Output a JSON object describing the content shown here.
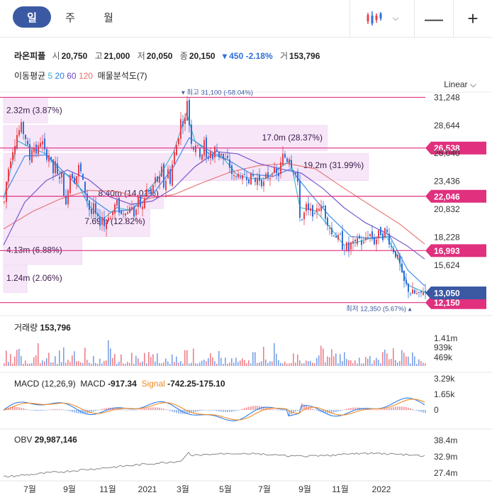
{
  "toolbar": {
    "periods": [
      {
        "label": "일",
        "active": true
      },
      {
        "label": "주",
        "active": false
      },
      {
        "label": "월",
        "active": false
      }
    ],
    "zoom_out": "—",
    "zoom_in": "+"
  },
  "quote": {
    "name": "라온피플",
    "open_label": "시",
    "open": "20,750",
    "high_label": "고",
    "high": "21,000",
    "low_label": "저",
    "low": "20,050",
    "close_label": "종",
    "close": "20,150",
    "change": "▾ 450 -2.18%",
    "volume_label": "거",
    "volume": "153,796"
  },
  "indicators": {
    "ma_label": "이동평균",
    "ma5": "5",
    "ma20": "20",
    "ma60": "60",
    "ma120": "120",
    "volume_profile": "매물분석도(7)"
  },
  "scale": "Linear",
  "colors": {
    "up": "#e8414b",
    "down": "#2f6fd9",
    "ma5": "#2cb5c9",
    "ma20": "#2f7ee8",
    "ma60": "#6b48c8",
    "ma120": "#e86f6f",
    "level": "#e0307e",
    "current": "#3b59a3",
    "profile": "#f6e6f8",
    "macd": "#2f7ee8",
    "signal": "#f08a24"
  },
  "chart_data": {
    "type": "candlestick",
    "y_axis_ticks": [
      "31,248",
      "28,644",
      "26,040",
      "23,436",
      "20,832",
      "18,228",
      "15,624"
    ],
    "ylim": [
      11800,
      31600
    ],
    "x_axis_ticks": [
      "7월",
      "9월",
      "11월",
      "2021",
      "3월",
      "5월",
      "7월",
      "9월",
      "11월",
      "2022"
    ],
    "high_marker": {
      "label": "최고",
      "value": "31,100",
      "pct": "(-58.04%)"
    },
    "low_marker": {
      "label": "최저",
      "value": "12,350",
      "pct": "(5.67%)"
    },
    "price_levels": [
      {
        "value": 26538,
        "label": "26,538"
      },
      {
        "value": 22046,
        "label": "22,046"
      },
      {
        "value": 16993,
        "label": "16,993"
      },
      {
        "value": 12150,
        "label": "12,150"
      }
    ],
    "current_price": {
      "value": 13050,
      "label": "13,050"
    },
    "volume_profile": [
      {
        "label": "2.32m (3.87%)",
        "low": 28800,
        "high": 31248
      },
      {
        "label": "17.0m (28.37%)",
        "low": 26200,
        "high": 28644
      },
      {
        "label": "19.2m (31.99%)",
        "low": 23436,
        "high": 26040
      },
      {
        "label": "8.40m (14.01%)",
        "low": 20832,
        "high": 23436
      },
      {
        "label": "7.69m (12.82%)",
        "low": 18228,
        "high": 20832
      },
      {
        "label": "4.13m (6.88%)",
        "low": 15624,
        "high": 18228
      },
      {
        "label": "1.24m (2.06%)",
        "low": 13020,
        "high": 15624
      }
    ],
    "price_path": [
      [
        0,
        21500
      ],
      [
        4,
        24000
      ],
      [
        10,
        26000
      ],
      [
        18,
        27800
      ],
      [
        24,
        28500
      ],
      [
        30,
        27500
      ],
      [
        36,
        25500
      ],
      [
        40,
        27000
      ],
      [
        46,
        26000
      ],
      [
        52,
        27500
      ],
      [
        58,
        25800
      ],
      [
        64,
        26000
      ],
      [
        68,
        24000
      ],
      [
        72,
        25000
      ],
      [
        76,
        23500
      ],
      [
        80,
        24500
      ],
      [
        84,
        22500
      ],
      [
        88,
        20500
      ],
      [
        90,
        23000
      ],
      [
        94,
        24500
      ],
      [
        98,
        23500
      ],
      [
        102,
        24000
      ],
      [
        106,
        25000
      ],
      [
        110,
        23500
      ],
      [
        114,
        22500
      ],
      [
        118,
        21500
      ],
      [
        122,
        20200
      ],
      [
        126,
        21000
      ],
      [
        130,
        20000
      ],
      [
        134,
        19500
      ],
      [
        138,
        20200
      ],
      [
        142,
        19000
      ],
      [
        146,
        20500
      ],
      [
        150,
        20000
      ],
      [
        154,
        20800
      ],
      [
        158,
        21500
      ],
      [
        162,
        20800
      ],
      [
        166,
        20200
      ],
      [
        170,
        21000
      ],
      [
        174,
        20500
      ],
      [
        178,
        21500
      ],
      [
        182,
        20200
      ],
      [
        186,
        20800
      ],
      [
        190,
        21800
      ],
      [
        194,
        20500
      ],
      [
        198,
        22000
      ],
      [
        202,
        22800
      ],
      [
        206,
        22000
      ],
      [
        210,
        23000
      ],
      [
        214,
        23800
      ],
      [
        218,
        23200
      ],
      [
        222,
        24500
      ],
      [
        226,
        22500
      ],
      [
        230,
        24800
      ],
      [
        234,
        23500
      ],
      [
        238,
        25500
      ],
      [
        242,
        26500
      ],
      [
        246,
        27800
      ],
      [
        250,
        29500
      ],
      [
        254,
        28500
      ],
      [
        258,
        31100
      ],
      [
        262,
        28000
      ],
      [
        266,
        26500
      ],
      [
        270,
        27000
      ],
      [
        274,
        26200
      ],
      [
        278,
        25800
      ],
      [
        282,
        27000
      ],
      [
        286,
        25000
      ],
      [
        290,
        26500
      ],
      [
        294,
        25500
      ],
      [
        298,
        26800
      ],
      [
        302,
        25800
      ],
      [
        306,
        26200
      ],
      [
        310,
        25200
      ],
      [
        314,
        25500
      ],
      [
        318,
        24800
      ],
      [
        322,
        24000
      ],
      [
        326,
        23500
      ],
      [
        330,
        24500
      ],
      [
        334,
        23000
      ],
      [
        338,
        24200
      ],
      [
        342,
        24000
      ],
      [
        346,
        23600
      ],
      [
        350,
        24000
      ],
      [
        354,
        23400
      ],
      [
        358,
        23800
      ],
      [
        362,
        23500
      ],
      [
        366,
        23200
      ],
      [
        370,
        24000
      ],
      [
        374,
        23800
      ],
      [
        378,
        24500
      ],
      [
        382,
        24200
      ],
      [
        386,
        23800
      ],
      [
        390,
        25000
      ],
      [
        394,
        26000
      ],
      [
        398,
        25400
      ],
      [
        402,
        25800
      ],
      [
        406,
        24800
      ],
      [
        410,
        24500
      ],
      [
        414,
        23000
      ],
      [
        418,
        19500
      ],
      [
        422,
        20200
      ],
      [
        426,
        21000
      ],
      [
        430,
        20400
      ],
      [
        434,
        20800
      ],
      [
        438,
        20000
      ],
      [
        442,
        21500
      ],
      [
        446,
        20800
      ],
      [
        450,
        21000
      ],
      [
        454,
        20000
      ],
      [
        458,
        19500
      ],
      [
        462,
        18500
      ],
      [
        466,
        18800
      ],
      [
        470,
        18000
      ],
      [
        474,
        18200
      ],
      [
        478,
        17200
      ],
      [
        482,
        17500
      ],
      [
        486,
        17000
      ],
      [
        490,
        17800
      ],
      [
        494,
        17200
      ],
      [
        498,
        18300
      ],
      [
        502,
        18000
      ],
      [
        506,
        17400
      ],
      [
        510,
        18200
      ],
      [
        514,
        18600
      ],
      [
        518,
        18400
      ],
      [
        522,
        17800
      ],
      [
        526,
        18200
      ],
      [
        530,
        18800
      ],
      [
        534,
        18400
      ],
      [
        538,
        19000
      ],
      [
        542,
        18200
      ],
      [
        546,
        17300
      ],
      [
        550,
        17000
      ],
      [
        554,
        16400
      ],
      [
        558,
        15600
      ],
      [
        562,
        14200
      ],
      [
        566,
        13800
      ],
      [
        570,
        13400
      ],
      [
        574,
        13000
      ],
      [
        578,
        13000
      ],
      [
        582,
        12900
      ],
      [
        586,
        12600
      ],
      [
        590,
        13400
      ],
      [
        594,
        13100
      ]
    ],
    "ma5_path": [
      [
        0,
        21800
      ],
      [
        20,
        27200
      ],
      [
        40,
        26500
      ],
      [
        60,
        26000
      ],
      [
        80,
        24300
      ],
      [
        100,
        23800
      ],
      [
        120,
        21200
      ],
      [
        140,
        19900
      ],
      [
        160,
        21000
      ],
      [
        180,
        20700
      ],
      [
        200,
        22300
      ],
      [
        220,
        23900
      ],
      [
        240,
        26200
      ],
      [
        258,
        29800
      ],
      [
        270,
        27200
      ],
      [
        290,
        26000
      ],
      [
        310,
        25600
      ],
      [
        330,
        24000
      ],
      [
        350,
        23700
      ],
      [
        370,
        23700
      ],
      [
        390,
        24700
      ],
      [
        405,
        25400
      ],
      [
        418,
        21000
      ],
      [
        440,
        20700
      ],
      [
        460,
        19200
      ],
      [
        480,
        17500
      ],
      [
        500,
        17800
      ],
      [
        520,
        18200
      ],
      [
        540,
        18300
      ],
      [
        556,
        16400
      ],
      [
        570,
        13800
      ],
      [
        594,
        13100
      ]
    ],
    "ma20_path": [
      [
        0,
        22000
      ],
      [
        30,
        25800
      ],
      [
        60,
        25900
      ],
      [
        90,
        24000
      ],
      [
        120,
        22000
      ],
      [
        150,
        20600
      ],
      [
        180,
        20800
      ],
      [
        210,
        22200
      ],
      [
        240,
        24800
      ],
      [
        262,
        27500
      ],
      [
        290,
        26300
      ],
      [
        320,
        25300
      ],
      [
        350,
        24100
      ],
      [
        380,
        23900
      ],
      [
        405,
        24600
      ],
      [
        430,
        22500
      ],
      [
        460,
        20200
      ],
      [
        490,
        18300
      ],
      [
        520,
        18100
      ],
      [
        545,
        18300
      ],
      [
        570,
        15200
      ],
      [
        594,
        13700
      ]
    ],
    "ma60_path": [
      [
        0,
        17500
      ],
      [
        30,
        21500
      ],
      [
        60,
        23500
      ],
      [
        90,
        24500
      ],
      [
        120,
        23600
      ],
      [
        150,
        22000
      ],
      [
        180,
        21300
      ],
      [
        210,
        21600
      ],
      [
        240,
        22800
      ],
      [
        270,
        24800
      ],
      [
        300,
        26200
      ],
      [
        330,
        26000
      ],
      [
        360,
        25100
      ],
      [
        390,
        24600
      ],
      [
        420,
        24200
      ],
      [
        450,
        22800
      ],
      [
        480,
        21000
      ],
      [
        510,
        19600
      ],
      [
        540,
        18600
      ],
      [
        570,
        17400
      ],
      [
        594,
        16200
      ]
    ],
    "ma120_path": [
      [
        0,
        19000
      ],
      [
        40,
        20600
      ],
      [
        80,
        21800
      ],
      [
        120,
        22600
      ],
      [
        160,
        22500
      ],
      [
        200,
        21800
      ],
      [
        240,
        22200
      ],
      [
        280,
        23300
      ],
      [
        320,
        24300
      ],
      [
        360,
        24900
      ],
      [
        400,
        25100
      ],
      [
        440,
        24600
      ],
      [
        480,
        22800
      ],
      [
        520,
        21100
      ],
      [
        560,
        19400
      ],
      [
        594,
        17600
      ]
    ],
    "volume": {
      "title": "거래량",
      "value": "153,796",
      "ticks": [
        "1.41m",
        "939k",
        "469k"
      ]
    },
    "macd": {
      "title": "MACD (12,26,9)",
      "macd_label": "MACD",
      "macd_value": "-917.34",
      "signal_label": "Signal",
      "signal_value": "-742.25",
      "hist_value": "-175.10",
      "ticks": [
        "3.29k",
        "1.65k",
        "0"
      ]
    },
    "obv": {
      "title": "OBV",
      "value": "29,987,146",
      "ticks": [
        "38.4m",
        "32.9m",
        "27.4m"
      ]
    }
  }
}
